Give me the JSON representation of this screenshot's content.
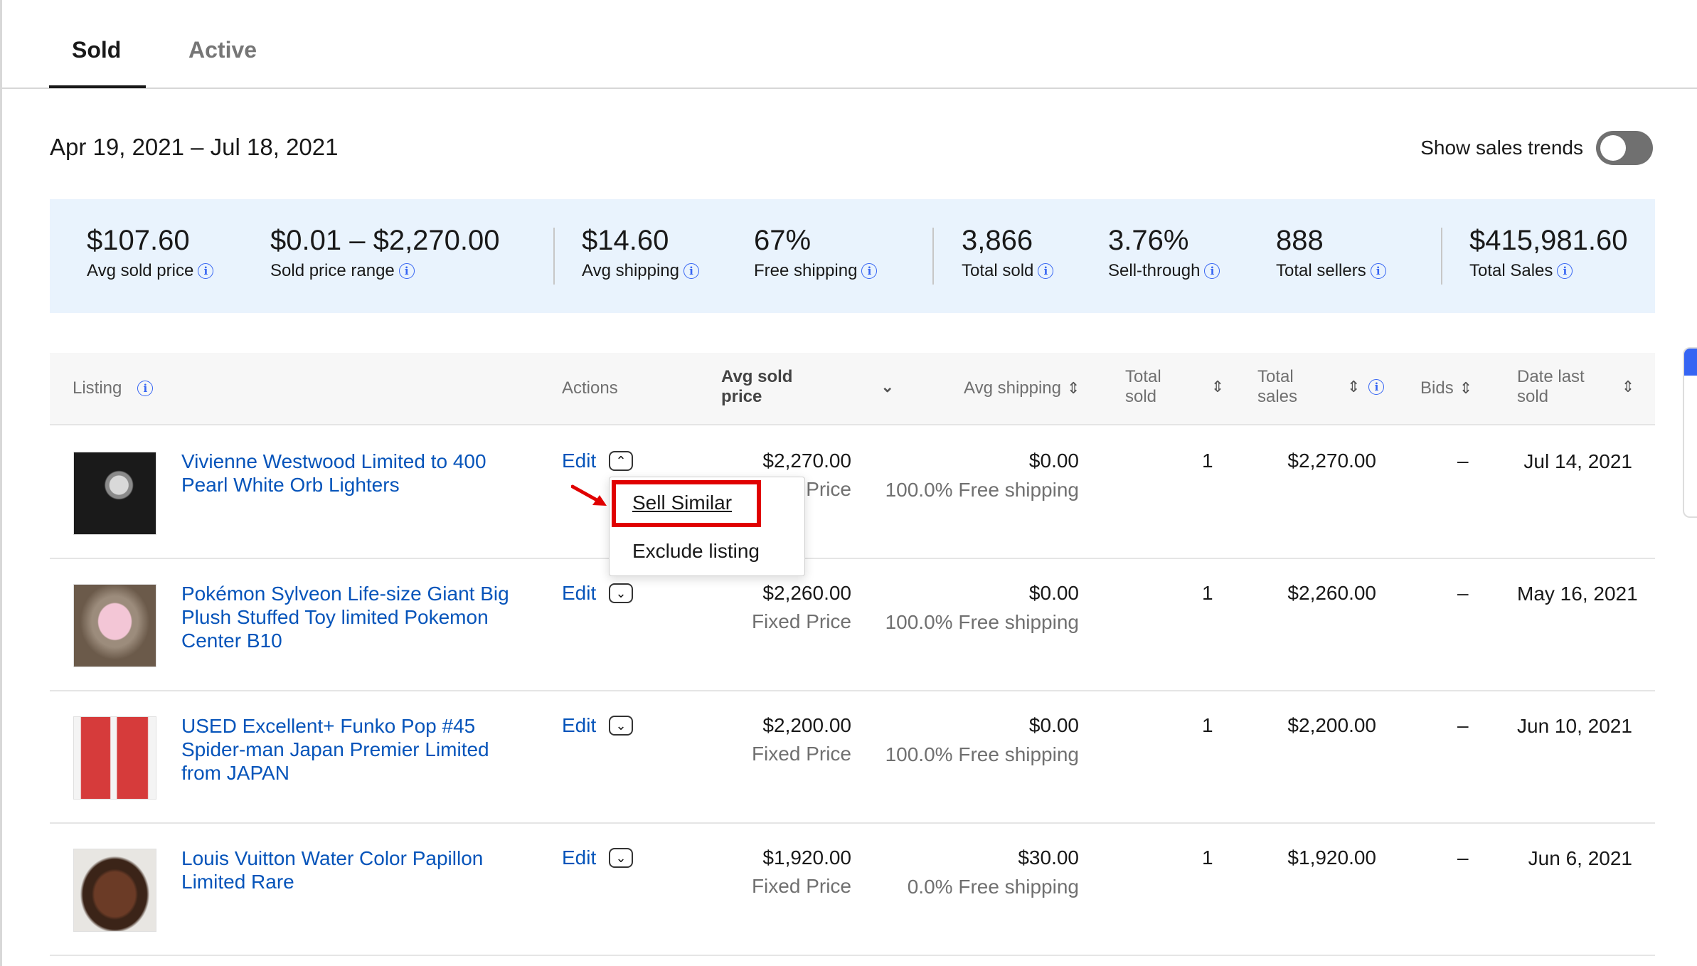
{
  "tabs": [
    {
      "label": "Sold",
      "active": true
    },
    {
      "label": "Active",
      "active": false
    }
  ],
  "date_range": "Apr 19, 2021 – Jul 18, 2021",
  "sales_trends": {
    "label": "Show sales trends",
    "enabled": false
  },
  "metrics": [
    {
      "value": "$107.60",
      "label": "Avg sold price"
    },
    {
      "value": "$0.01 – $2,270.00",
      "label": "Sold price range"
    },
    {
      "value": "$14.60",
      "label": "Avg shipping"
    },
    {
      "value": "67%",
      "label": "Free shipping"
    },
    {
      "value": "3,866",
      "label": "Total sold"
    },
    {
      "value": "3.76%",
      "label": "Sell-through"
    },
    {
      "value": "888",
      "label": "Total sellers"
    },
    {
      "value": "$415,981.60",
      "label": "Total Sales"
    }
  ],
  "columns": {
    "listing": "Listing",
    "actions": "Actions",
    "avg_sold_price_1": "Avg sold",
    "avg_sold_price_2": "price",
    "avg_shipping": "Avg shipping",
    "total_sold_1": "Total",
    "total_sold_2": "sold",
    "total_sales_1": "Total",
    "total_sales_2": "sales",
    "bids": "Bids",
    "date_last_sold_1": "Date last",
    "date_last_sold_2": "sold"
  },
  "rows": [
    {
      "title": "Vivienne Westwood Limited to 400 Pearl White Orb Lighters",
      "edit": "Edit",
      "price": "$2,270.00",
      "price_type": "Fixed Price",
      "shipping": "$0.00",
      "shipping_note": "100.0% Free shipping",
      "total_sold": "1",
      "total_sales": "$2,270.00",
      "bids": "–",
      "date_last_sold": "Jul 14, 2021"
    },
    {
      "title": "Pokémon Sylveon Life-size Giant Big Plush Stuffed Toy limited Pokemon Center B10",
      "edit": "Edit",
      "price": "$2,260.00",
      "price_type": "Fixed Price",
      "shipping": "$0.00",
      "shipping_note": "100.0% Free shipping",
      "total_sold": "1",
      "total_sales": "$2,260.00",
      "bids": "–",
      "date_last_sold": "May 16, 2021"
    },
    {
      "title": "USED Excellent+ Funko Pop #45 Spider-man Japan Premier Limited from JAPAN",
      "edit": "Edit",
      "price": "$2,200.00",
      "price_type": "Fixed Price",
      "shipping": "$0.00",
      "shipping_note": "100.0% Free shipping",
      "total_sold": "1",
      "total_sales": "$2,200.00",
      "bids": "–",
      "date_last_sold": "Jun 10, 2021"
    },
    {
      "title": "Louis Vuitton Water Color Papillon Limited Rare",
      "edit": "Edit",
      "price": "$1,920.00",
      "price_type": "Fixed Price",
      "shipping": "$30.00",
      "shipping_note": "0.0% Free shipping",
      "total_sold": "1",
      "total_sales": "$1,920.00",
      "bids": "–",
      "date_last_sold": "Jun 6, 2021"
    }
  ],
  "action_menu": {
    "items": [
      "Sell Similar",
      "Exclude listing"
    ]
  },
  "colors": {
    "link": "#0654ba",
    "metrics_bg": "#e9f3fd",
    "highlight": "#e00000",
    "info": "#3665f3"
  }
}
